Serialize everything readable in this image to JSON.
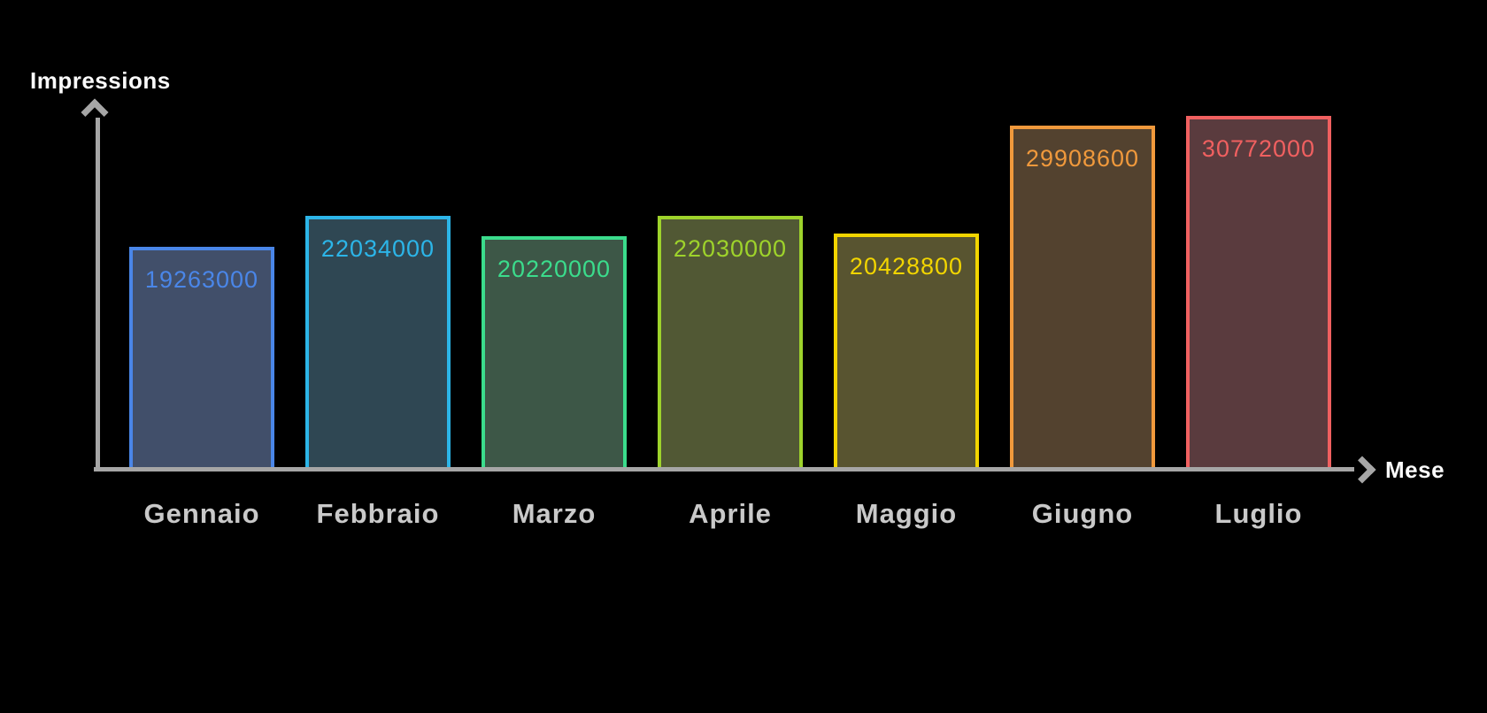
{
  "chart_data": {
    "type": "bar",
    "title": "",
    "xlabel": "Mese",
    "ylabel": "Impressions",
    "categories": [
      "Gennaio",
      "Febbraio",
      "Marzo",
      "Aprile",
      "Maggio",
      "Giugno",
      "Luglio"
    ],
    "values": [
      19263000,
      22034000,
      20220000,
      22030000,
      20428800,
      29908600,
      30772000
    ],
    "value_labels": [
      "19263000",
      "22034000",
      "20220000",
      "22030000",
      "20428800",
      "29908600",
      "30772000"
    ],
    "bar_border_colors": [
      "#4a86e8",
      "#2cb5e8",
      "#3bdc8c",
      "#9ed32b",
      "#f2d500",
      "#f0993c",
      "#f06060"
    ],
    "bar_fill_colors": [
      "#414f6a",
      "#2f4753",
      "#3d5747",
      "#515834",
      "#585430",
      "#53422f",
      "#5a3b3e"
    ],
    "value_label_colors": [
      "#4a86e8",
      "#2cb5e8",
      "#3bdc8c",
      "#9ed32b",
      "#f2d500",
      "#f0993c",
      "#f06060"
    ],
    "axis_color": "#a6a6a6",
    "category_label_color": "#c9c9c9",
    "axis_title_color": "#fafafa",
    "background_color": "#000000",
    "baseline": 0,
    "grid": false,
    "legend": false
  }
}
